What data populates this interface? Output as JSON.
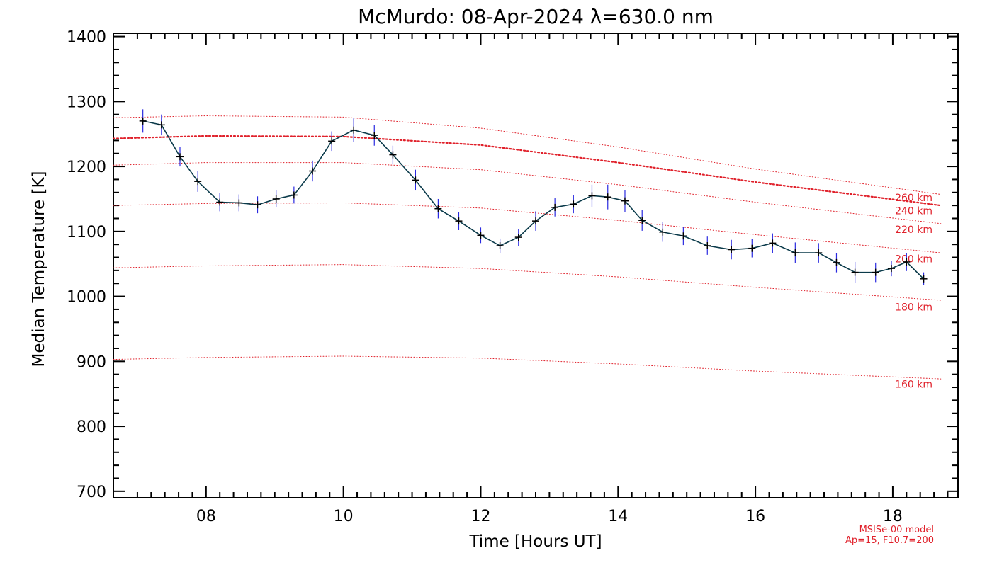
{
  "chart_data": {
    "type": "line",
    "title": "McMurdo: 08-Apr-2024 λ=630.0 nm",
    "xlabel": "Time [Hours UT]",
    "ylabel": "Median Temperature [K]",
    "xlim": [
      6.65,
      18.95
    ],
    "ylim": [
      690,
      1405
    ],
    "x_ticks": [
      8,
      10,
      12,
      14,
      16,
      18
    ],
    "x_tick_labels": [
      "08",
      "10",
      "12",
      "14",
      "16",
      "18"
    ],
    "y_ticks": [
      700,
      800,
      900,
      1000,
      1100,
      1200,
      1300,
      1400
    ],
    "y_tick_labels": [
      "700",
      "800",
      "900",
      "1000",
      "1100",
      "1200",
      "1300",
      "1400"
    ],
    "grid": false,
    "colors": {
      "measurement_line": "#0a3a4a",
      "error_bars": "#2a2ae0",
      "model_curves": "#e0202a"
    },
    "series": [
      {
        "x": [
          7.08,
          7.35,
          7.62,
          7.88,
          8.2,
          8.48,
          8.75,
          9.02,
          9.28,
          9.55,
          9.83,
          10.15,
          10.45,
          10.72,
          11.05,
          11.38,
          11.68,
          12.0,
          12.28,
          12.55,
          12.8,
          13.08,
          13.35,
          13.62,
          13.85,
          14.1,
          14.35,
          14.65,
          14.95,
          15.3,
          15.65,
          15.95,
          16.25,
          16.58,
          16.92,
          17.18,
          17.45,
          17.75,
          17.98,
          18.2,
          18.45
        ],
        "values": [
          1270,
          1264,
          1215,
          1177,
          1145,
          1144,
          1141,
          1150,
          1156,
          1193,
          1239,
          1256,
          1248,
          1218,
          1179,
          1135,
          1116,
          1094,
          1078,
          1091,
          1116,
          1137,
          1142,
          1155,
          1153,
          1147,
          1117,
          1099,
          1093,
          1078,
          1072,
          1074,
          1082,
          1067,
          1067,
          1052,
          1037,
          1037,
          1043,
          1053,
          1027
        ],
        "errors": [
          18,
          16,
          15,
          16,
          14,
          13,
          13,
          13,
          13,
          16,
          15,
          18,
          16,
          14,
          16,
          15,
          14,
          12,
          11,
          13,
          15,
          14,
          14,
          17,
          19,
          17,
          16,
          15,
          14,
          14,
          15,
          14,
          15,
          16,
          15,
          15,
          16,
          15,
          12,
          14,
          10
        ]
      }
    ],
    "model_curves": [
      {
        "name": "160 km",
        "x": [
          6.65,
          8,
          10,
          12,
          14,
          16,
          18.7
        ],
        "values": [
          903,
          906,
          908,
          905,
          896,
          885,
          873
        ]
      },
      {
        "name": "180 km",
        "x": [
          6.65,
          8,
          10,
          12,
          14,
          16,
          18.7
        ],
        "values": [
          1044,
          1047,
          1049,
          1043,
          1030,
          1014,
          994
        ]
      },
      {
        "name": "200 km",
        "x": [
          6.65,
          8,
          10,
          12,
          14,
          16,
          18.7
        ],
        "values": [
          1140,
          1143,
          1144,
          1136,
          1117,
          1095,
          1067
        ]
      },
      {
        "name": "220 km",
        "x": [
          6.65,
          8,
          10,
          12,
          14,
          16,
          18.7
        ],
        "values": [
          1202,
          1206,
          1206,
          1195,
          1172,
          1145,
          1112
        ]
      },
      {
        "name": "240 km",
        "x": [
          6.65,
          8,
          10,
          12,
          14,
          16,
          18.7
        ],
        "values": [
          1243,
          1247,
          1246,
          1233,
          1206,
          1176,
          1140
        ]
      },
      {
        "name": "260 km",
        "x": [
          6.65,
          8,
          10,
          12,
          14,
          16,
          18.7
        ],
        "values": [
          1275,
          1278,
          1276,
          1259,
          1230,
          1196,
          1157
        ]
      }
    ],
    "model_labels": [
      {
        "text": "260 km",
        "value": 1152
      },
      {
        "text": "240 km",
        "value": 1132
      },
      {
        "text": "220 km",
        "value": 1103
      },
      {
        "text": "200 km",
        "value": 1058
      },
      {
        "text": "180 km",
        "value": 984
      },
      {
        "text": "160 km",
        "value": 865
      }
    ],
    "notes": [
      "MSISe-00 model",
      "Ap=15, F10.7=200"
    ]
  }
}
